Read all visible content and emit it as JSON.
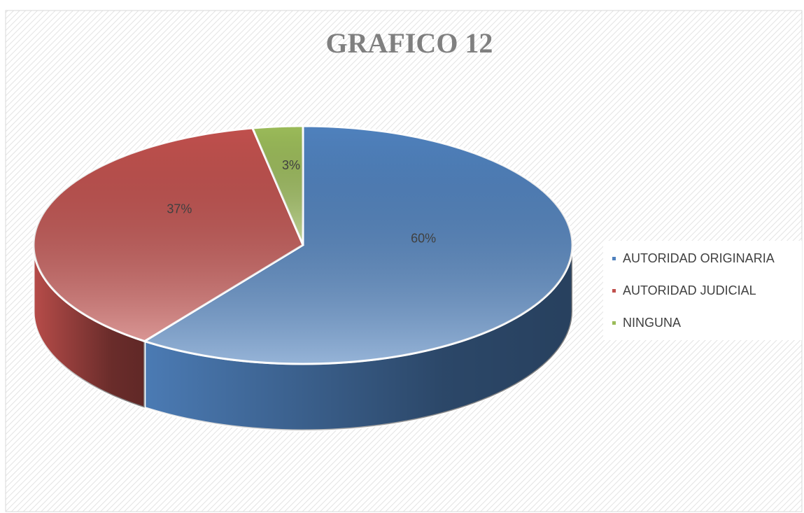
{
  "chart_data": {
    "type": "pie",
    "title": "GRAFICO 12",
    "categories": [
      "AUTORIDAD ORIGINARIA",
      "AUTORIDAD JUDICIAL",
      "NINGUNA"
    ],
    "values": [
      60,
      37,
      3
    ],
    "value_labels": [
      "60%",
      "37%",
      "3%"
    ],
    "colors": [
      "#4f81bd",
      "#c0504d",
      "#9bbb59"
    ],
    "legend": "right"
  }
}
